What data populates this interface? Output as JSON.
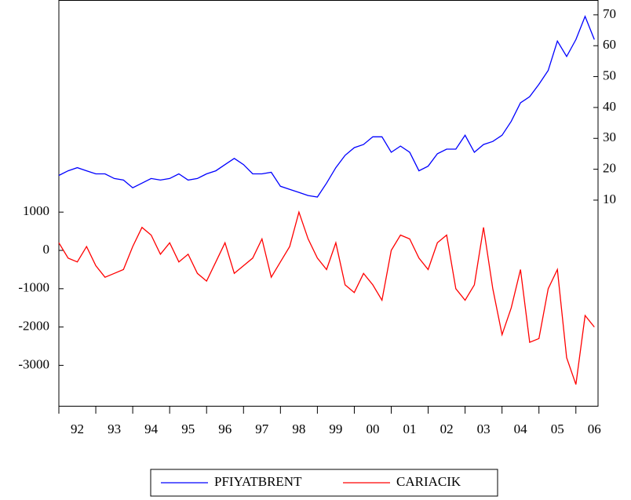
{
  "chart_data": {
    "type": "line",
    "x": [
      1992.0,
      1992.25,
      1992.5,
      1992.75,
      1993.0,
      1993.25,
      1993.5,
      1993.75,
      1994.0,
      1994.25,
      1994.5,
      1994.75,
      1995.0,
      1995.25,
      1995.5,
      1995.75,
      1996.0,
      1996.25,
      1996.5,
      1996.75,
      1997.0,
      1997.25,
      1997.5,
      1997.75,
      1998.0,
      1998.25,
      1998.5,
      1998.75,
      1999.0,
      1999.25,
      1999.5,
      1999.75,
      2000.0,
      2000.25,
      2000.5,
      2000.75,
      2001.0,
      2001.25,
      2001.5,
      2001.75,
      2002.0,
      2002.25,
      2002.5,
      2002.75,
      2003.0,
      2003.25,
      2003.5,
      2003.75,
      2004.0,
      2004.25,
      2004.5,
      2004.75,
      2005.0,
      2005.25,
      2005.5,
      2005.75,
      2006.0,
      2006.25,
      2006.5
    ],
    "series": [
      {
        "name": "PFIYATBRENT",
        "color": "#0000ff",
        "axis": "y2",
        "values": [
          18,
          19.5,
          20.5,
          19.5,
          18.5,
          18.5,
          17,
          16.5,
          14,
          15.5,
          17,
          16.5,
          17,
          18.5,
          16.5,
          17,
          18.5,
          19.5,
          21.5,
          23.5,
          21.5,
          18.5,
          18.5,
          19,
          14.5,
          13.5,
          12.5,
          11.5,
          11,
          15.5,
          20.5,
          24.5,
          27,
          28,
          30.5,
          30.5,
          25.5,
          27.5,
          25.5,
          19.5,
          21,
          25,
          26.5,
          26.5,
          31,
          25.5,
          28,
          29,
          31,
          35.5,
          41.5,
          43.5,
          47.5,
          52,
          61.5,
          56.5,
          62,
          69.5,
          62
        ]
      },
      {
        "name": "CARIACIK",
        "color": "#ff0000",
        "values": [
          200,
          -200,
          -300,
          100,
          -400,
          -700,
          -600,
          -500,
          100,
          600,
          400,
          -100,
          200,
          -300,
          -100,
          -600,
          -800,
          -300,
          200,
          -600,
          -400,
          -200,
          300,
          -700,
          -300,
          100,
          1000,
          300,
          -200,
          -500,
          200,
          -900,
          -1100,
          -600,
          -900,
          -1300,
          0,
          400,
          300,
          -200,
          -500,
          200,
          400,
          -1000,
          -1300,
          -900,
          600,
          -1000,
          -2200,
          -1500,
          -500,
          -2400,
          -2300,
          -1000,
          -500,
          -2800,
          -3500,
          -1700,
          -2000
        ]
      }
    ],
    "xlim": [
      1992.0,
      2006.6
    ],
    "xticks": [
      {
        "value": 1992,
        "label": "92"
      },
      {
        "value": 1993,
        "label": "93"
      },
      {
        "value": 1994,
        "label": "94"
      },
      {
        "value": 1995,
        "label": "95"
      },
      {
        "value": 1996,
        "label": "96"
      },
      {
        "value": 1997,
        "label": "97"
      },
      {
        "value": 1998,
        "label": "98"
      },
      {
        "value": 1999,
        "label": "99"
      },
      {
        "value": 2000,
        "label": "00"
      },
      {
        "value": 2001,
        "label": "01"
      },
      {
        "value": 2002,
        "label": "02"
      },
      {
        "value": 2003,
        "label": "03"
      },
      {
        "value": 2004,
        "label": "04"
      },
      {
        "value": 2005,
        "label": "05"
      },
      {
        "value": 2006,
        "label": "06"
      }
    ],
    "ylim": [
      -4057,
      6537
    ],
    "yticks": [
      -3000,
      -2000,
      -1000,
      0,
      1000
    ],
    "y2lim": [
      -56.6,
      74.8
    ],
    "y2ticks": [
      10,
      20,
      30,
      40,
      50,
      60,
      70
    ],
    "legend": "bottom"
  }
}
